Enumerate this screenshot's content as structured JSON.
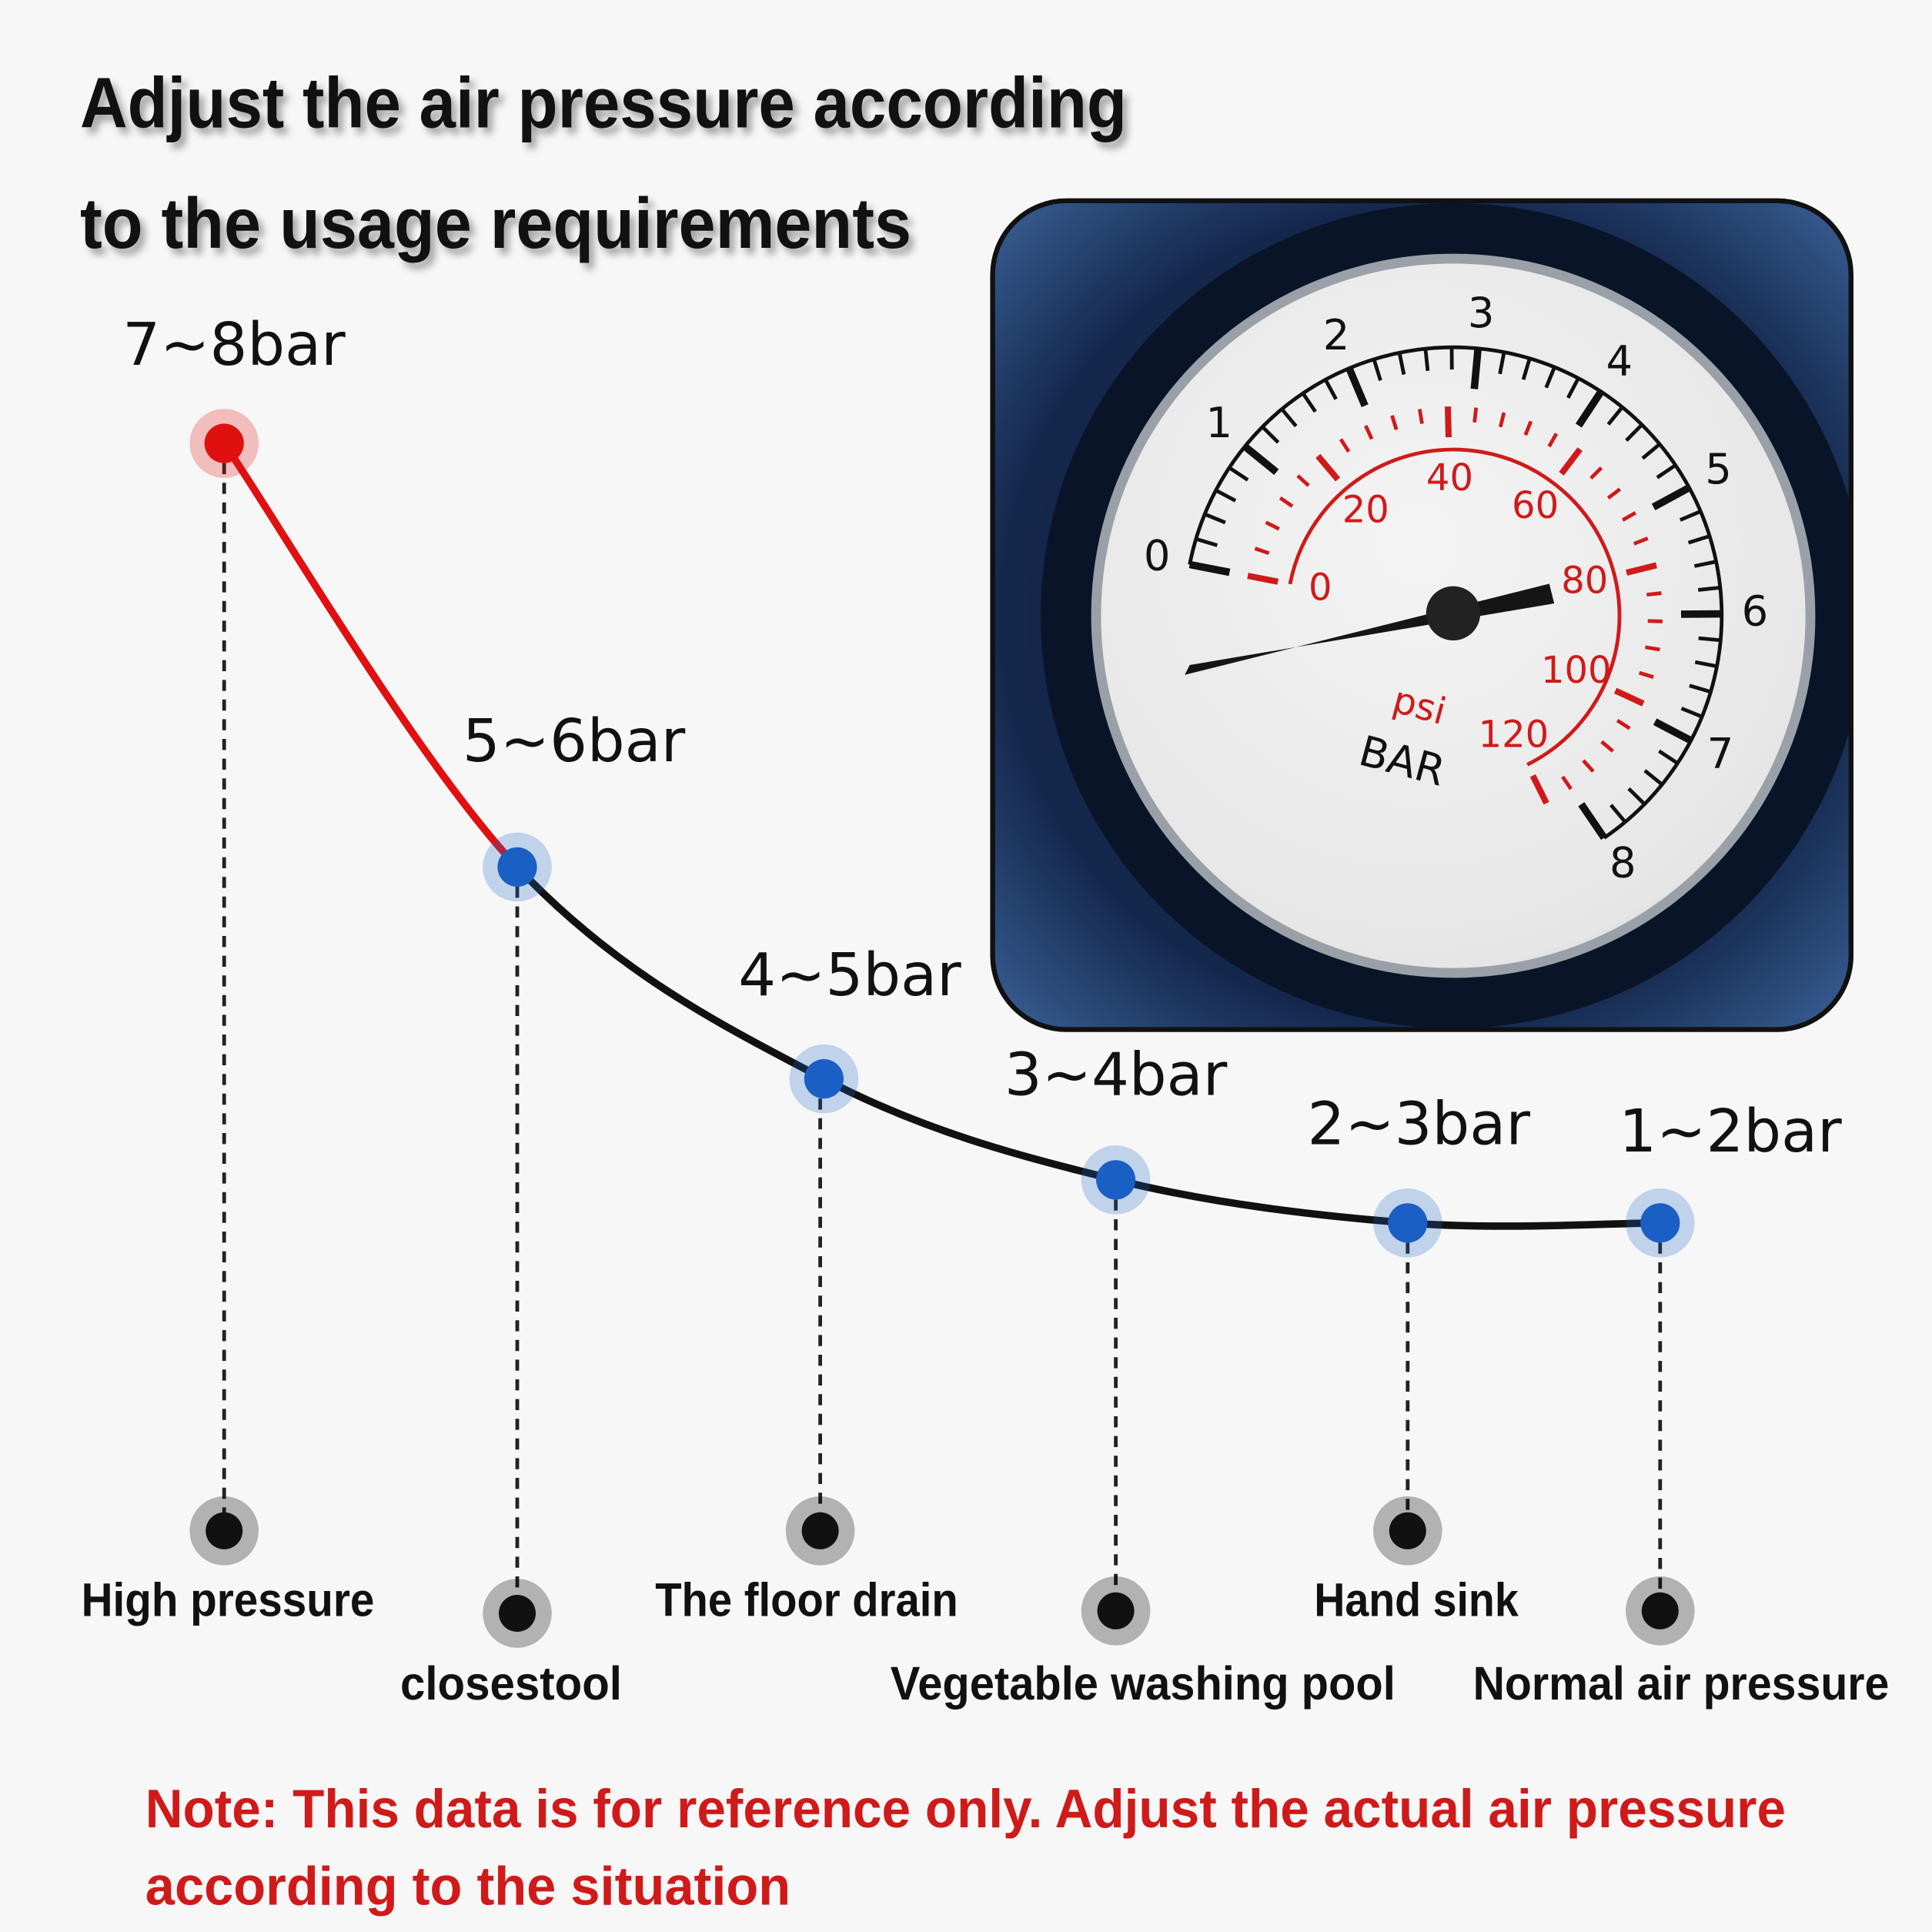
{
  "header": {
    "title": [
      "Adjust the air pressure according",
      "to the usage requirements"
    ]
  },
  "points": [
    {
      "pressure": "7~8bar",
      "usage": "High pressure"
    },
    {
      "pressure": "5~6bar",
      "usage": "closestool"
    },
    {
      "pressure": "4~5bar",
      "usage": "The floor drain"
    },
    {
      "pressure": "3~4bar",
      "usage": "Vegetable washing pool"
    },
    {
      "pressure": "2~3bar",
      "usage": "Hand sink"
    },
    {
      "pressure": "1~2bar",
      "usage": "Normal air pressure"
    }
  ],
  "gauge": {
    "bar_labels": [
      "0",
      "1",
      "2",
      "3",
      "4",
      "5",
      "6",
      "7",
      "8"
    ],
    "psi_labels": [
      "0",
      "20",
      "40",
      "60",
      "80",
      "100",
      "120"
    ],
    "psi_unit": "psi",
    "bar_unit": "BAR"
  },
  "note": [
    "Note: This data is for reference only. Adjust the actual air pressure",
    "according to the situation"
  ]
}
